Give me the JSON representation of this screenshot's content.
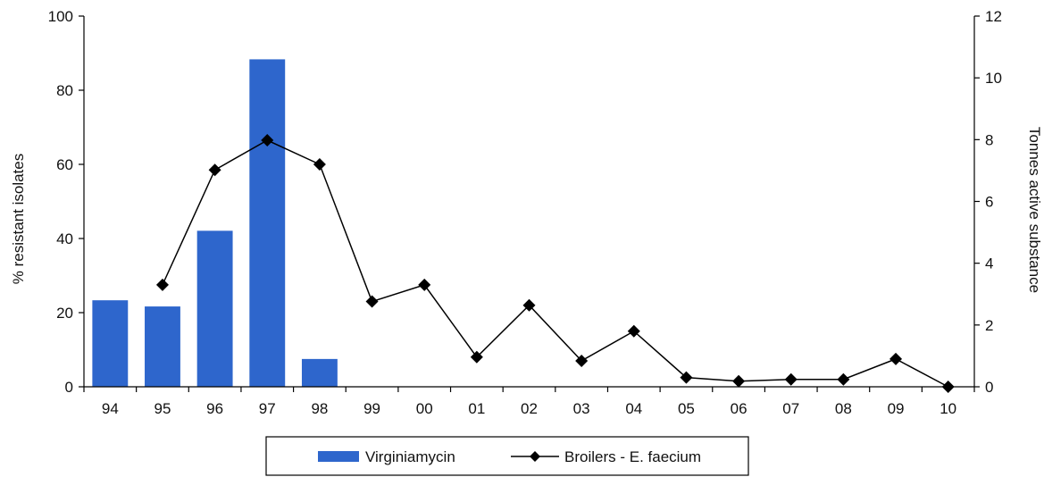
{
  "chart_data": {
    "type": "bar",
    "categories": [
      "94",
      "95",
      "96",
      "97",
      "98",
      "99",
      "00",
      "01",
      "02",
      "03",
      "04",
      "05",
      "06",
      "07",
      "08",
      "09",
      "10"
    ],
    "series": [
      {
        "name": "Virginiamycin",
        "type": "bar",
        "axis": "right",
        "color": "#2e66cc",
        "values": [
          2.8,
          2.6,
          5.05,
          10.6,
          0.9,
          null,
          null,
          null,
          null,
          null,
          null,
          null,
          null,
          null,
          null,
          null,
          null
        ]
      },
      {
        "name": "Broilers - E. faecium",
        "type": "line",
        "axis": "left",
        "color": "#000000",
        "marker": "diamond",
        "values": [
          null,
          27.5,
          58.5,
          66.5,
          60,
          23,
          27.5,
          8,
          22,
          7,
          15,
          2.5,
          1.5,
          2,
          2,
          7.5,
          0
        ]
      }
    ],
    "xlabel": "",
    "ylabel": "% resistant isolates",
    "ylabel_right": "Tonnes active substance",
    "ylim": [
      0,
      100
    ],
    "ylim_right": [
      0,
      12
    ],
    "yticks": [
      "0",
      "20",
      "40",
      "60",
      "80",
      "100"
    ],
    "yticks_right": [
      "0",
      "2",
      "4",
      "6",
      "8",
      "10",
      "12"
    ],
    "grid": false,
    "legend_position": "bottom"
  }
}
